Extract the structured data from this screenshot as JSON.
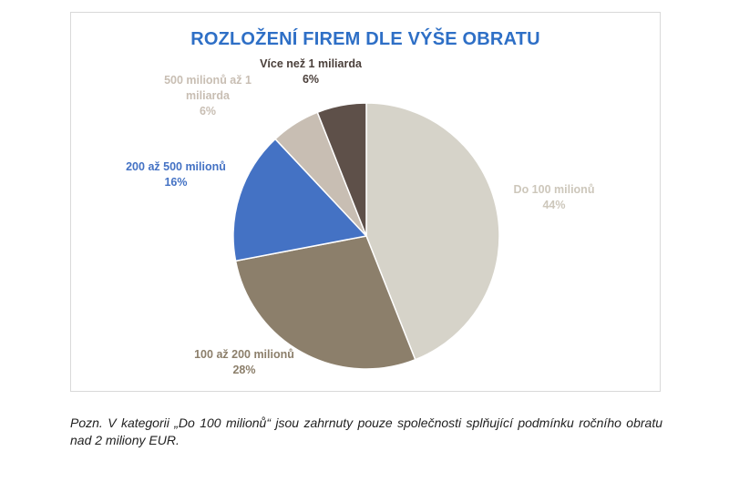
{
  "chart_data": {
    "type": "pie",
    "title": "ROZLOŽENÍ FIREM DLE VÝŠE OBRATU",
    "slices": [
      {
        "label": "Do 100 milionů",
        "value": 44,
        "value_label": "44%",
        "color": "#d6d3c9",
        "label_color": "#cdc7bb"
      },
      {
        "label": "100 až 200 milionů",
        "value": 28,
        "value_label": "28%",
        "color": "#8c7f6b",
        "label_color": "#8c7f6b"
      },
      {
        "label": "200 až 500 milionů",
        "value": 16,
        "value_label": "16%",
        "color": "#4472c4",
        "label_color": "#4472c4"
      },
      {
        "label": "500 milionů až 1 miliarda",
        "label_lines": [
          "500 milionů až 1",
          "miliarda"
        ],
        "value": 6,
        "value_label": "6%",
        "color": "#c8beb3",
        "label_color": "#c8beb3"
      },
      {
        "label": "Více než 1 miliarda",
        "value": 6,
        "value_label": "6%",
        "color": "#5e5049",
        "label_color": "#4a3f3a"
      }
    ]
  },
  "note": "Pozn. V kategorii „Do 100 milionů“ jsou zahrnuty pouze společnosti splňující podmínku ročního obratu nad 2 miliony EUR."
}
